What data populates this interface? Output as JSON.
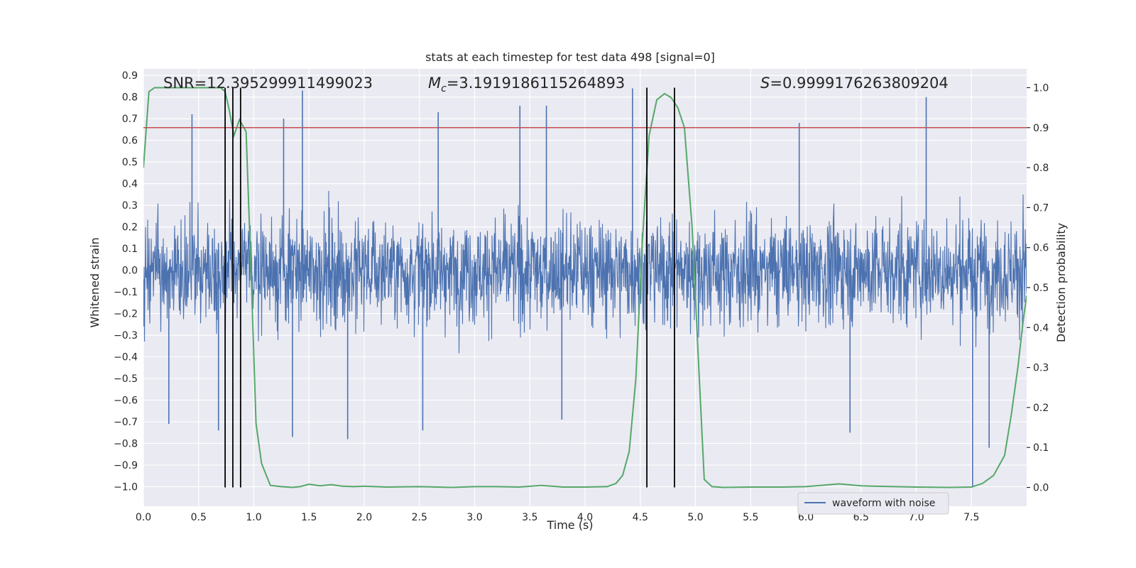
{
  "chart_data": {
    "type": "line",
    "title": "stats at each timestep for test data 498 [signal=0]",
    "xlabel": "Time (s)",
    "ylabel_left": "Whitened strain",
    "ylabel_right": "Detection probability",
    "xlim": [
      0,
      8
    ],
    "ylim_left": [
      -1.09,
      0.93
    ],
    "ylim_right": [
      -0.047,
      1.047
    ],
    "x_ticks": [
      0.0,
      0.5,
      1.0,
      1.5,
      2.0,
      2.5,
      3.0,
      3.5,
      4.0,
      4.5,
      5.0,
      5.5,
      6.0,
      6.5,
      7.0,
      7.5
    ],
    "x_tick_labels": [
      "0.0",
      "0.5",
      "1.0",
      "1.5",
      "2.0",
      "2.5",
      "3.0",
      "3.5",
      "4.0",
      "4.5",
      "5.0",
      "5.5",
      "6.0",
      "6.5",
      "7.0",
      "7.5"
    ],
    "y_left_ticks": [
      -1.0,
      -0.9,
      -0.8,
      -0.7,
      -0.6,
      -0.5,
      -0.4,
      -0.3,
      -0.2,
      -0.1,
      0.0,
      0.1,
      0.2,
      0.3,
      0.4,
      0.5,
      0.6,
      0.7,
      0.8,
      0.9
    ],
    "y_left_tick_labels": [
      "−1.0",
      "−0.9",
      "−0.8",
      "−0.7",
      "−0.6",
      "−0.5",
      "−0.4",
      "−0.3",
      "−0.2",
      "−0.1",
      "0.0",
      "0.1",
      "0.2",
      "0.3",
      "0.4",
      "0.5",
      "0.6",
      "0.7",
      "0.8",
      "0.9"
    ],
    "y_right_ticks": [
      0.0,
      0.1,
      0.2,
      0.3,
      0.4,
      0.5,
      0.6,
      0.7,
      0.8,
      0.9,
      1.0
    ],
    "y_right_tick_labels": [
      "0.0",
      "0.1",
      "0.2",
      "0.3",
      "0.4",
      "0.5",
      "0.6",
      "0.7",
      "0.8",
      "0.9",
      "1.0"
    ],
    "grid": true,
    "annotations": {
      "snr": "SNR=12.395299911499023",
      "mc_symbol": "M",
      "mc_sub": "c",
      "mc_value": "=3.1919186115264893",
      "s_symbol": "S",
      "s_value": "=0.9999176263809204"
    },
    "threshold": 0.9,
    "vlines": [
      0.74,
      0.81,
      0.88,
      4.56,
      4.81
    ],
    "series": [
      {
        "name": "waveform with noise",
        "axis": "left",
        "color": "#4c72b0",
        "note": "dense whitened-strain noise; typical amplitude about ±0.3–0.5, spikes up to 0.83 and down to −1.0",
        "spikes": [
          {
            "x": 0.44,
            "y": 0.72
          },
          {
            "x": 1.27,
            "y": 0.7
          },
          {
            "x": 1.44,
            "y": 0.83
          },
          {
            "x": 2.67,
            "y": 0.73
          },
          {
            "x": 3.41,
            "y": 0.76
          },
          {
            "x": 3.65,
            "y": 0.76
          },
          {
            "x": 4.43,
            "y": 0.84
          },
          {
            "x": 5.94,
            "y": 0.68
          },
          {
            "x": 7.09,
            "y": 0.8
          },
          {
            "x": 0.68,
            "y": -0.74
          },
          {
            "x": 1.35,
            "y": -0.77
          },
          {
            "x": 1.85,
            "y": -0.78
          },
          {
            "x": 2.53,
            "y": -0.74
          },
          {
            "x": 3.79,
            "y": -0.69
          },
          {
            "x": 6.4,
            "y": -0.75
          },
          {
            "x": 7.51,
            "y": -1.0
          },
          {
            "x": 7.66,
            "y": -0.82
          },
          {
            "x": 0.23,
            "y": -0.71
          }
        ]
      },
      {
        "name": "",
        "axis": "right",
        "color": "#55a868",
        "x": [
          0.0,
          0.05,
          0.1,
          0.2,
          0.3,
          0.4,
          0.5,
          0.6,
          0.7,
          0.74,
          0.78,
          0.82,
          0.87,
          0.93,
          0.98,
          1.02,
          1.07,
          1.15,
          1.25,
          1.35,
          1.42,
          1.5,
          1.6,
          1.7,
          1.8,
          1.9,
          2.0,
          2.2,
          2.5,
          2.8,
          3.0,
          3.2,
          3.4,
          3.6,
          3.7,
          3.8,
          4.0,
          4.2,
          4.28,
          4.34,
          4.4,
          4.46,
          4.52,
          4.58,
          4.65,
          4.72,
          4.78,
          4.84,
          4.9,
          4.97,
          5.03,
          5.08,
          5.15,
          5.25,
          5.5,
          5.8,
          6.0,
          6.3,
          6.5,
          6.6,
          6.8,
          7.0,
          7.3,
          7.5,
          7.6,
          7.7,
          7.8,
          7.86,
          7.92,
          7.97,
          8.0
        ],
        "y": [
          0.8,
          0.99,
          1.0,
          1.0,
          1.0,
          1.0,
          1.0,
          1.0,
          1.0,
          0.99,
          0.94,
          0.88,
          0.92,
          0.89,
          0.5,
          0.16,
          0.06,
          0.005,
          0.002,
          0.0,
          0.002,
          0.008,
          0.004,
          0.007,
          0.003,
          0.002,
          0.003,
          0.001,
          0.002,
          0.0,
          0.002,
          0.002,
          0.001,
          0.005,
          0.003,
          0.001,
          0.001,
          0.002,
          0.01,
          0.03,
          0.09,
          0.27,
          0.62,
          0.88,
          0.97,
          0.985,
          0.975,
          0.95,
          0.9,
          0.65,
          0.3,
          0.02,
          0.002,
          0.0,
          0.001,
          0.001,
          0.002,
          0.009,
          0.004,
          0.003,
          0.002,
          0.001,
          0.0,
          0.001,
          0.01,
          0.03,
          0.08,
          0.18,
          0.3,
          0.42,
          0.48
        ]
      },
      {
        "name": "",
        "axis": "right",
        "color": "#c44e52",
        "note": "horizontal threshold line at 0.9"
      }
    ],
    "legend": {
      "position": "lower-right",
      "entries": [
        "waveform with noise"
      ]
    }
  }
}
